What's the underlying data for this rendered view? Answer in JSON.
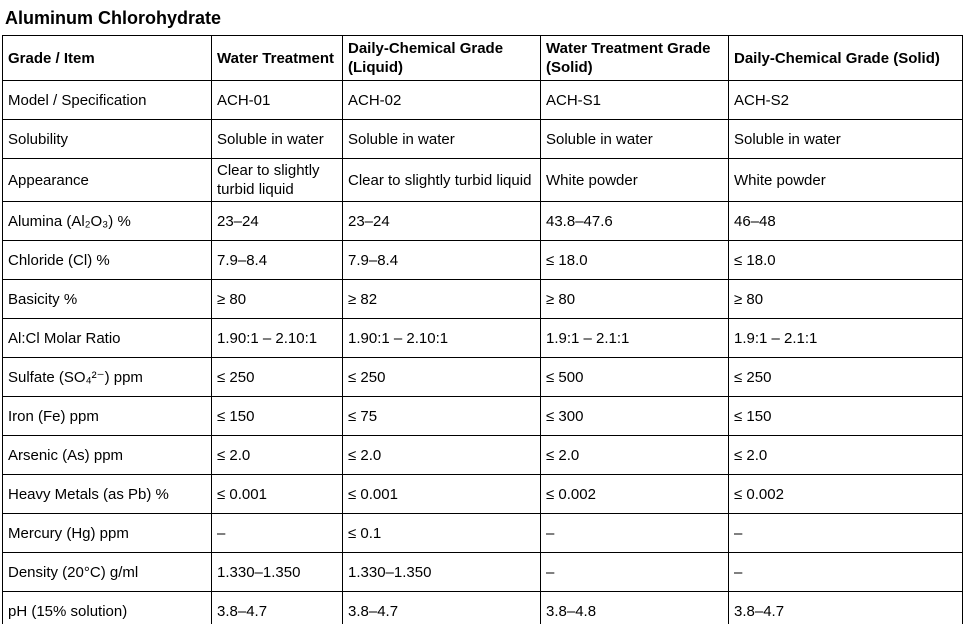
{
  "title": "Aluminum Chlorohydrate",
  "colors": {
    "border": "#000000",
    "text": "#000000",
    "background": "#ffffff"
  },
  "table": {
    "columns": [
      "Grade / Item",
      "Water Treatment",
      "Daily-Chemical Grade (Liquid)",
      "Water Treatment Grade (Solid)",
      "Daily-Chemical Grade (Solid)"
    ],
    "rows": [
      {
        "item": "Model / Specification",
        "values": [
          "ACH-01",
          "ACH-02",
          "ACH-S1",
          "ACH-S2"
        ]
      },
      {
        "item": "Solubility",
        "values": [
          "Soluble in water",
          "Soluble in water",
          "Soluble in water",
          "Soluble in water"
        ]
      },
      {
        "item": "Appearance",
        "values": [
          "Clear to slightly turbid liquid",
          "Clear to slightly turbid liquid",
          "White powder",
          "White powder"
        ]
      },
      {
        "item": "Alumina (Al₂O₃) %",
        "values": [
          "23–24",
          "23–24",
          "43.8–47.6",
          "46–48"
        ]
      },
      {
        "item": "Chloride (Cl) %",
        "values": [
          "7.9–8.4",
          "7.9–8.4",
          "≤ 18.0",
          "≤ 18.0"
        ]
      },
      {
        "item": "Basicity %",
        "values": [
          "≥ 80",
          "≥ 82",
          "≥ 80",
          "≥ 80"
        ]
      },
      {
        "item": "Al:Cl Molar Ratio",
        "values": [
          "1.90:1 – 2.10:1",
          "1.90:1 – 2.10:1",
          "1.9:1 – 2.1:1",
          "1.9:1 – 2.1:1"
        ]
      },
      {
        "item": "Sulfate (SO₄²⁻) ppm",
        "values": [
          "≤ 250",
          "≤ 250",
          "≤ 500",
          "≤ 250"
        ]
      },
      {
        "item": "Iron (Fe) ppm",
        "values": [
          "≤ 150",
          "≤ 75",
          "≤ 300",
          "≤ 150"
        ]
      },
      {
        "item": "Arsenic (As) ppm",
        "values": [
          "≤ 2.0",
          "≤ 2.0",
          "≤ 2.0",
          "≤ 2.0"
        ]
      },
      {
        "item": "Heavy Metals (as Pb) %",
        "values": [
          "≤ 0.001",
          "≤ 0.001",
          "≤ 0.002",
          "≤ 0.002"
        ]
      },
      {
        "item": "Mercury (Hg) ppm",
        "values": [
          "–",
          "≤ 0.1",
          "–",
          "–"
        ]
      },
      {
        "item": "Density (20°C) g/ml",
        "values": [
          "1.330–1.350",
          "1.330–1.350",
          "–",
          "–"
        ]
      },
      {
        "item": "pH (15% solution)",
        "values": [
          "3.8–4.7",
          "3.8–4.7",
          "3.8–4.8",
          "3.8–4.7"
        ]
      }
    ]
  }
}
